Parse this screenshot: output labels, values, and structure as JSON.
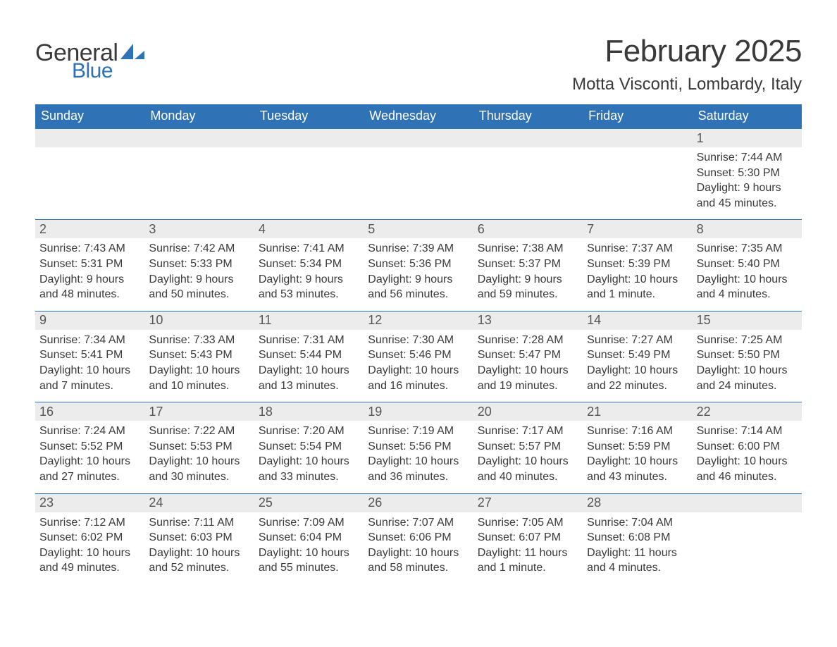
{
  "brand": {
    "line1": "General",
    "line2": "Blue"
  },
  "title": "February 2025",
  "location": "Motta Visconti, Lombardy, Italy",
  "days_of_week": [
    "Sunday",
    "Monday",
    "Tuesday",
    "Wednesday",
    "Thursday",
    "Friday",
    "Saturday"
  ],
  "colors": {
    "header_bg": "#2f72b6",
    "header_text": "#ffffff",
    "band_bg": "#ececec",
    "rule": "#2f72b6",
    "text": "#3a3a3a",
    "daynum": "#555555",
    "background": "#ffffff"
  },
  "typography": {
    "title_fontsize": 44,
    "location_fontsize": 24,
    "dow_fontsize": 18,
    "daynum_fontsize": 18,
    "body_fontsize": 16,
    "font_family": "Segoe UI"
  },
  "layout": {
    "columns": 7,
    "weeks": 5,
    "first_weekday_index": 6
  },
  "days": {
    "1": {
      "sunrise": "Sunrise: 7:44 AM",
      "sunset": "Sunset: 5:30 PM",
      "daylight1": "Daylight: 9 hours",
      "daylight2": "and 45 minutes."
    },
    "2": {
      "sunrise": "Sunrise: 7:43 AM",
      "sunset": "Sunset: 5:31 PM",
      "daylight1": "Daylight: 9 hours",
      "daylight2": "and 48 minutes."
    },
    "3": {
      "sunrise": "Sunrise: 7:42 AM",
      "sunset": "Sunset: 5:33 PM",
      "daylight1": "Daylight: 9 hours",
      "daylight2": "and 50 minutes."
    },
    "4": {
      "sunrise": "Sunrise: 7:41 AM",
      "sunset": "Sunset: 5:34 PM",
      "daylight1": "Daylight: 9 hours",
      "daylight2": "and 53 minutes."
    },
    "5": {
      "sunrise": "Sunrise: 7:39 AM",
      "sunset": "Sunset: 5:36 PM",
      "daylight1": "Daylight: 9 hours",
      "daylight2": "and 56 minutes."
    },
    "6": {
      "sunrise": "Sunrise: 7:38 AM",
      "sunset": "Sunset: 5:37 PM",
      "daylight1": "Daylight: 9 hours",
      "daylight2": "and 59 minutes."
    },
    "7": {
      "sunrise": "Sunrise: 7:37 AM",
      "sunset": "Sunset: 5:39 PM",
      "daylight1": "Daylight: 10 hours",
      "daylight2": "and 1 minute."
    },
    "8": {
      "sunrise": "Sunrise: 7:35 AM",
      "sunset": "Sunset: 5:40 PM",
      "daylight1": "Daylight: 10 hours",
      "daylight2": "and 4 minutes."
    },
    "9": {
      "sunrise": "Sunrise: 7:34 AM",
      "sunset": "Sunset: 5:41 PM",
      "daylight1": "Daylight: 10 hours",
      "daylight2": "and 7 minutes."
    },
    "10": {
      "sunrise": "Sunrise: 7:33 AM",
      "sunset": "Sunset: 5:43 PM",
      "daylight1": "Daylight: 10 hours",
      "daylight2": "and 10 minutes."
    },
    "11": {
      "sunrise": "Sunrise: 7:31 AM",
      "sunset": "Sunset: 5:44 PM",
      "daylight1": "Daylight: 10 hours",
      "daylight2": "and 13 minutes."
    },
    "12": {
      "sunrise": "Sunrise: 7:30 AM",
      "sunset": "Sunset: 5:46 PM",
      "daylight1": "Daylight: 10 hours",
      "daylight2": "and 16 minutes."
    },
    "13": {
      "sunrise": "Sunrise: 7:28 AM",
      "sunset": "Sunset: 5:47 PM",
      "daylight1": "Daylight: 10 hours",
      "daylight2": "and 19 minutes."
    },
    "14": {
      "sunrise": "Sunrise: 7:27 AM",
      "sunset": "Sunset: 5:49 PM",
      "daylight1": "Daylight: 10 hours",
      "daylight2": "and 22 minutes."
    },
    "15": {
      "sunrise": "Sunrise: 7:25 AM",
      "sunset": "Sunset: 5:50 PM",
      "daylight1": "Daylight: 10 hours",
      "daylight2": "and 24 minutes."
    },
    "16": {
      "sunrise": "Sunrise: 7:24 AM",
      "sunset": "Sunset: 5:52 PM",
      "daylight1": "Daylight: 10 hours",
      "daylight2": "and 27 minutes."
    },
    "17": {
      "sunrise": "Sunrise: 7:22 AM",
      "sunset": "Sunset: 5:53 PM",
      "daylight1": "Daylight: 10 hours",
      "daylight2": "and 30 minutes."
    },
    "18": {
      "sunrise": "Sunrise: 7:20 AM",
      "sunset": "Sunset: 5:54 PM",
      "daylight1": "Daylight: 10 hours",
      "daylight2": "and 33 minutes."
    },
    "19": {
      "sunrise": "Sunrise: 7:19 AM",
      "sunset": "Sunset: 5:56 PM",
      "daylight1": "Daylight: 10 hours",
      "daylight2": "and 36 minutes."
    },
    "20": {
      "sunrise": "Sunrise: 7:17 AM",
      "sunset": "Sunset: 5:57 PM",
      "daylight1": "Daylight: 10 hours",
      "daylight2": "and 40 minutes."
    },
    "21": {
      "sunrise": "Sunrise: 7:16 AM",
      "sunset": "Sunset: 5:59 PM",
      "daylight1": "Daylight: 10 hours",
      "daylight2": "and 43 minutes."
    },
    "22": {
      "sunrise": "Sunrise: 7:14 AM",
      "sunset": "Sunset: 6:00 PM",
      "daylight1": "Daylight: 10 hours",
      "daylight2": "and 46 minutes."
    },
    "23": {
      "sunrise": "Sunrise: 7:12 AM",
      "sunset": "Sunset: 6:02 PM",
      "daylight1": "Daylight: 10 hours",
      "daylight2": "and 49 minutes."
    },
    "24": {
      "sunrise": "Sunrise: 7:11 AM",
      "sunset": "Sunset: 6:03 PM",
      "daylight1": "Daylight: 10 hours",
      "daylight2": "and 52 minutes."
    },
    "25": {
      "sunrise": "Sunrise: 7:09 AM",
      "sunset": "Sunset: 6:04 PM",
      "daylight1": "Daylight: 10 hours",
      "daylight2": "and 55 minutes."
    },
    "26": {
      "sunrise": "Sunrise: 7:07 AM",
      "sunset": "Sunset: 6:06 PM",
      "daylight1": "Daylight: 10 hours",
      "daylight2": "and 58 minutes."
    },
    "27": {
      "sunrise": "Sunrise: 7:05 AM",
      "sunset": "Sunset: 6:07 PM",
      "daylight1": "Daylight: 11 hours",
      "daylight2": "and 1 minute."
    },
    "28": {
      "sunrise": "Sunrise: 7:04 AM",
      "sunset": "Sunset: 6:08 PM",
      "daylight1": "Daylight: 11 hours",
      "daylight2": "and 4 minutes."
    }
  },
  "weeks": [
    [
      null,
      null,
      null,
      null,
      null,
      null,
      "1"
    ],
    [
      "2",
      "3",
      "4",
      "5",
      "6",
      "7",
      "8"
    ],
    [
      "9",
      "10",
      "11",
      "12",
      "13",
      "14",
      "15"
    ],
    [
      "16",
      "17",
      "18",
      "19",
      "20",
      "21",
      "22"
    ],
    [
      "23",
      "24",
      "25",
      "26",
      "27",
      "28",
      null
    ]
  ]
}
